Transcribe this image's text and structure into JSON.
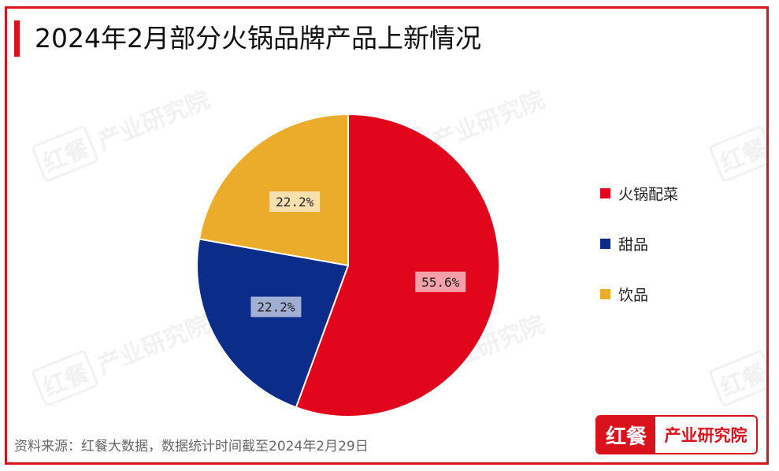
{
  "title": "2024年2月部分火锅品牌产品上新情况",
  "source": "资料来源：红餐大数据，数据统计时间截至2024年2月29日",
  "logo": {
    "left": "红餐",
    "right": "产业研究院"
  },
  "watermark": {
    "left": "红餐",
    "right": "产业研究院"
  },
  "colors": {
    "accent": "#d9121b"
  },
  "chart_data": {
    "type": "pie",
    "title": "2024年2月部分火锅品牌产品上新情况",
    "legend_position": "right",
    "slices": [
      {
        "name": "火锅配菜",
        "value": 55.6,
        "label": "55.6%",
        "color": "#e1061b"
      },
      {
        "name": "甜品",
        "value": 22.2,
        "label": "22.2%",
        "color": "#0c2c8a"
      },
      {
        "name": "饮品",
        "value": 22.2,
        "label": "22.2%",
        "color": "#ebab2b"
      }
    ]
  }
}
